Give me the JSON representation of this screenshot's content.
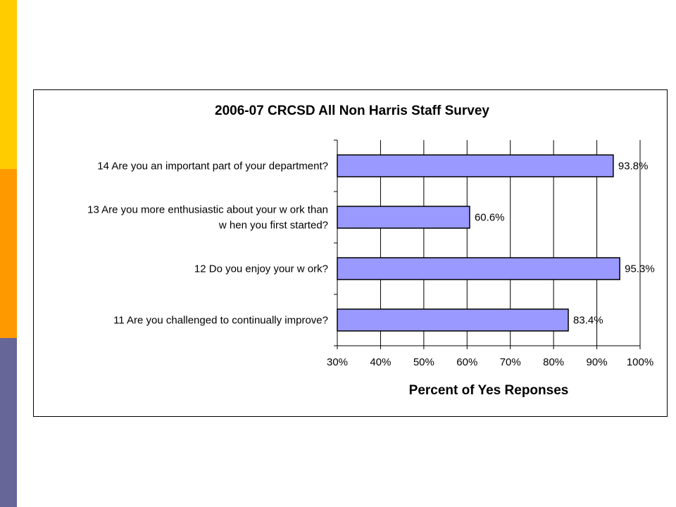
{
  "theme": {
    "stripe_colors": [
      "#FFCC00",
      "#FF9900",
      "#666699"
    ],
    "bar_fill": "#9999FF",
    "bar_stroke": "#000000"
  },
  "chart_data": {
    "type": "bar",
    "orientation": "horizontal",
    "title": "2006-07 CRCSD All Non Harris Staff Survey",
    "xlabel": "Percent of Yes Reponses",
    "ylabel": "",
    "xlim": [
      30,
      100
    ],
    "x_ticks": [
      "30%",
      "40%",
      "50%",
      "60%",
      "70%",
      "80%",
      "90%",
      "100%"
    ],
    "grid": "vertical",
    "legend": "none",
    "categories": [
      [
        "14 Are you an important part of your department?"
      ],
      [
        "13 Are you more enthusiastic about your w ork than",
        "w hen you first started?"
      ],
      [
        "12 Do you enjoy your w ork?"
      ],
      [
        "11 Are you challenged to continually improve?"
      ]
    ],
    "values": [
      93.8,
      60.6,
      95.3,
      83.4
    ],
    "data_labels": [
      "93.8%",
      "60.6%",
      "95.3%",
      "83.4%"
    ]
  }
}
